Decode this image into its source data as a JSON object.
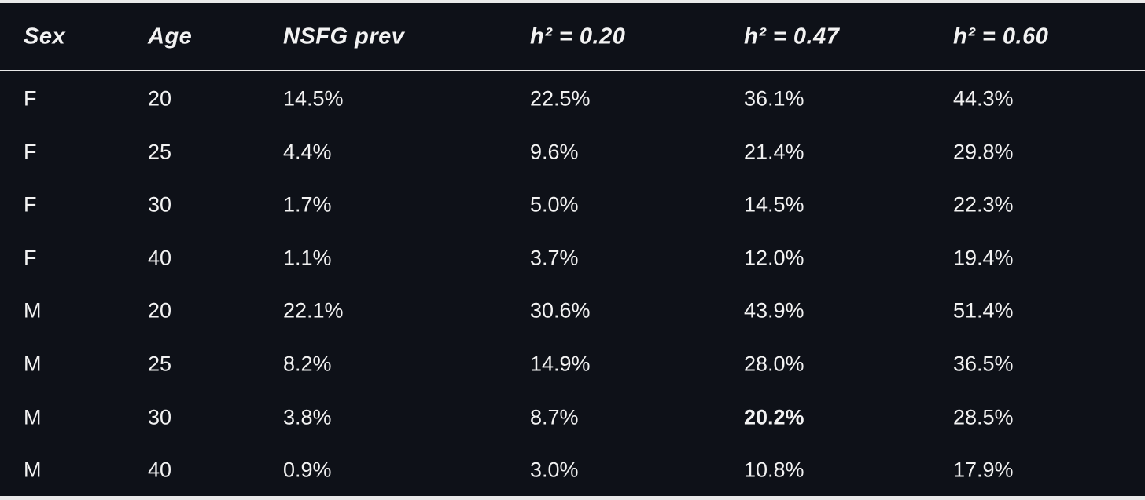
{
  "table": {
    "columns": [
      "Sex",
      "Age",
      "NSFG prev",
      "h² = 0.20",
      "h² = 0.47",
      "h² = 0.60"
    ],
    "rows": [
      [
        "F",
        "20",
        "14.5%",
        "22.5%",
        "36.1%",
        "44.3%"
      ],
      [
        "F",
        "25",
        "4.4%",
        "9.6%",
        "21.4%",
        "29.8%"
      ],
      [
        "F",
        "30",
        "1.7%",
        "5.0%",
        "14.5%",
        "22.3%"
      ],
      [
        "F",
        "40",
        "1.1%",
        "3.7%",
        "12.0%",
        "19.4%"
      ],
      [
        "M",
        "20",
        "22.1%",
        "30.6%",
        "43.9%",
        "51.4%"
      ],
      [
        "M",
        "25",
        "8.2%",
        "14.9%",
        "28.0%",
        "36.5%"
      ],
      [
        "M",
        "30",
        "3.8%",
        "8.7%",
        "20.2%",
        "28.5%"
      ],
      [
        "M",
        "40",
        "0.9%",
        "3.0%",
        "10.8%",
        "17.9%"
      ]
    ],
    "bold_cell": [
      6,
      4
    ]
  }
}
